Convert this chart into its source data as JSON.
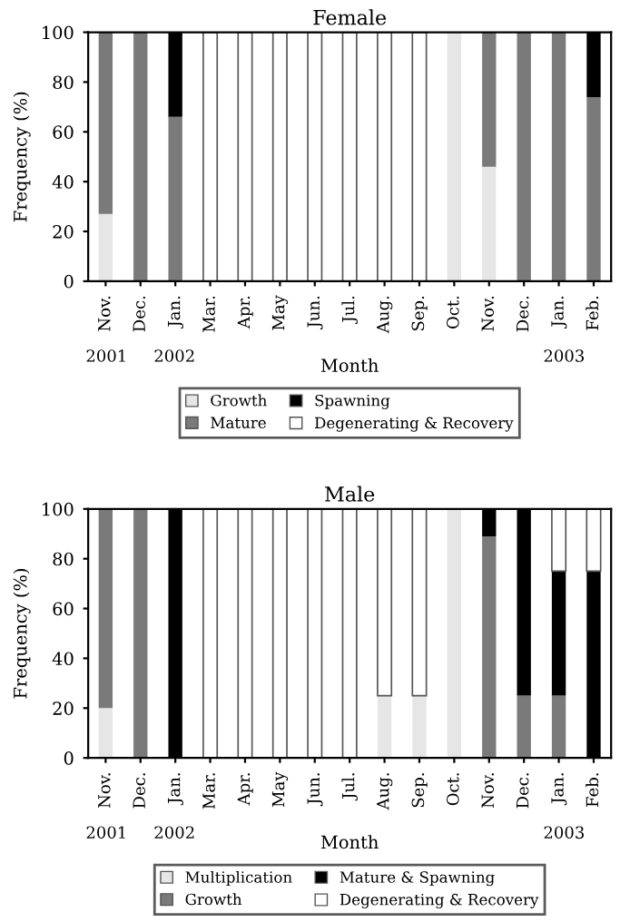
{
  "chart_data": [
    {
      "type": "bar",
      "title": "Female",
      "xlabel": "Month",
      "ylabel": "Frequency (%)",
      "stacked": true,
      "categories": [
        "Nov.",
        "Dec.",
        "Jan.",
        "Mar.",
        "Apr.",
        "May",
        "Jun.",
        "Jul.",
        "Aug.",
        "Sep.",
        "Oct.",
        "Nov.",
        "Dec.",
        "Jan.",
        "Feb."
      ],
      "series": [
        {
          "name": "Growth",
          "color": "#e6e6e6",
          "values": [
            27,
            0,
            0,
            0,
            0,
            0,
            0,
            0,
            0,
            0,
            100,
            46,
            0,
            0,
            0
          ]
        },
        {
          "name": "Mature",
          "color": "#7a7a7a",
          "values": [
            73,
            100,
            66,
            0,
            0,
            0,
            0,
            0,
            0,
            0,
            0,
            54,
            100,
            100,
            74
          ]
        },
        {
          "name": "Spawning",
          "color": "#000000",
          "values": [
            0,
            0,
            34,
            0,
            0,
            0,
            0,
            0,
            0,
            0,
            0,
            0,
            0,
            0,
            26
          ]
        },
        {
          "name": "Degenerating & Recovery",
          "color": "#ffffff",
          "values": [
            0,
            0,
            0,
            100,
            100,
            100,
            100,
            100,
            100,
            100,
            0,
            0,
            0,
            0,
            0
          ]
        }
      ],
      "ylim": [
        0,
        100
      ],
      "yticks": [
        0,
        20,
        40,
        60,
        80,
        100
      ],
      "grid": false,
      "legend": "bottom",
      "annotations": [
        "2001",
        "2002",
        "2003"
      ]
    },
    {
      "type": "bar",
      "title": "Male",
      "xlabel": "Month",
      "ylabel": "Frequency (%)",
      "stacked": true,
      "categories": [
        "Nov.",
        "Dec.",
        "Jan.",
        "Mar.",
        "Apr.",
        "May",
        "Jun.",
        "Jul.",
        "Aug.",
        "Sep.",
        "Oct.",
        "Nov.",
        "Dec.",
        "Jan.",
        "Feb."
      ],
      "series": [
        {
          "name": "Multiplication",
          "color": "#e6e6e6",
          "values": [
            20,
            0,
            0,
            0,
            0,
            0,
            0,
            0,
            25,
            25,
            100,
            0,
            0,
            0,
            0
          ]
        },
        {
          "name": "Growth",
          "color": "#7a7a7a",
          "values": [
            80,
            100,
            0,
            0,
            0,
            0,
            0,
            0,
            0,
            0,
            0,
            89,
            25,
            25,
            0
          ]
        },
        {
          "name": "Mature & Spawning",
          "color": "#000000",
          "values": [
            0,
            0,
            100,
            0,
            0,
            0,
            0,
            0,
            0,
            0,
            0,
            11,
            75,
            50,
            75
          ]
        },
        {
          "name": "Degenerating & Recovery",
          "color": "#ffffff",
          "values": [
            0,
            0,
            0,
            100,
            100,
            100,
            100,
            100,
            75,
            75,
            0,
            0,
            0,
            25,
            25
          ]
        }
      ],
      "ylim": [
        0,
        100
      ],
      "yticks": [
        0,
        20,
        40,
        60,
        80,
        100
      ],
      "grid": false,
      "legend": "bottom",
      "annotations": [
        "2001",
        "2002",
        "2003"
      ]
    }
  ]
}
